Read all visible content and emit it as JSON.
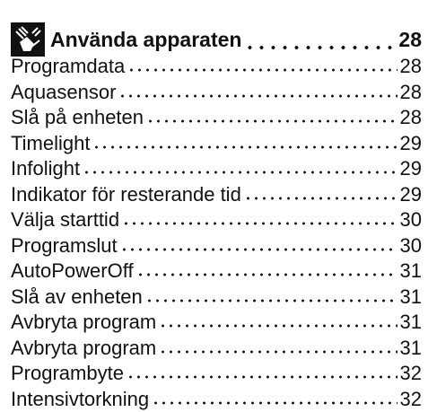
{
  "section": {
    "title": "Använda apparaten",
    "page": 28
  },
  "entries": [
    {
      "title": "Programdata",
      "page": 28
    },
    {
      "title": "Aquasensor",
      "page": 28
    },
    {
      "title": "Slå på enheten",
      "page": 28
    },
    {
      "title": "Timelight",
      "page": 29
    },
    {
      "title": "Infolight",
      "page": 29
    },
    {
      "title": "Indikator för resterande tid",
      "page": 29
    },
    {
      "title": "Välja starttid",
      "page": 30
    },
    {
      "title": "Programslut",
      "page": 30
    },
    {
      "title": "AutoPowerOff",
      "page": 31
    },
    {
      "title": "Slå av enheten",
      "page": 31
    },
    {
      "title": "Avbryta program",
      "page": 31
    },
    {
      "title": "Avbryta program",
      "page": 31
    },
    {
      "title": "Programbyte",
      "page": 32
    },
    {
      "title": "Intensivtorkning",
      "page": 32
    }
  ]
}
